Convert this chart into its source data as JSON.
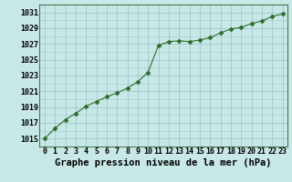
{
  "x": [
    0,
    1,
    2,
    3,
    4,
    5,
    6,
    7,
    8,
    9,
    10,
    11,
    12,
    13,
    14,
    15,
    16,
    17,
    18,
    19,
    20,
    21,
    22,
    23
  ],
  "y": [
    1015.0,
    1016.3,
    1017.4,
    1018.2,
    1019.1,
    1019.7,
    1020.3,
    1020.8,
    1021.4,
    1022.2,
    1023.4,
    1026.8,
    1027.3,
    1027.4,
    1027.3,
    1027.5,
    1027.8,
    1028.4,
    1028.9,
    1029.1,
    1029.6,
    1029.9,
    1030.5,
    1030.8
  ],
  "line_color": "#2d6e2d",
  "marker": "D",
  "marker_size": 2.5,
  "bg_color": "#c8e8e8",
  "grid_color": "#a0c8c8",
  "ylabel_ticks": [
    1015,
    1017,
    1019,
    1021,
    1023,
    1025,
    1027,
    1029,
    1031
  ],
  "xlabel_ticks": [
    0,
    1,
    2,
    3,
    4,
    5,
    6,
    7,
    8,
    9,
    10,
    11,
    12,
    13,
    14,
    15,
    16,
    17,
    18,
    19,
    20,
    21,
    22,
    23
  ],
  "xlabel_labels": [
    "0",
    "1",
    "2",
    "3",
    "4",
    "5",
    "6",
    "7",
    "8",
    "9",
    "10",
    "11",
    "12",
    "13",
    "14",
    "15",
    "16",
    "17",
    "18",
    "19",
    "20",
    "21",
    "22",
    "23"
  ],
  "xlabel": "Graphe pression niveau de la mer (hPa)",
  "ylim": [
    1014.0,
    1032.0
  ],
  "xlim": [
    -0.5,
    23.5
  ],
  "axis_fontsize": 6,
  "xlabel_fontsize": 7.5
}
